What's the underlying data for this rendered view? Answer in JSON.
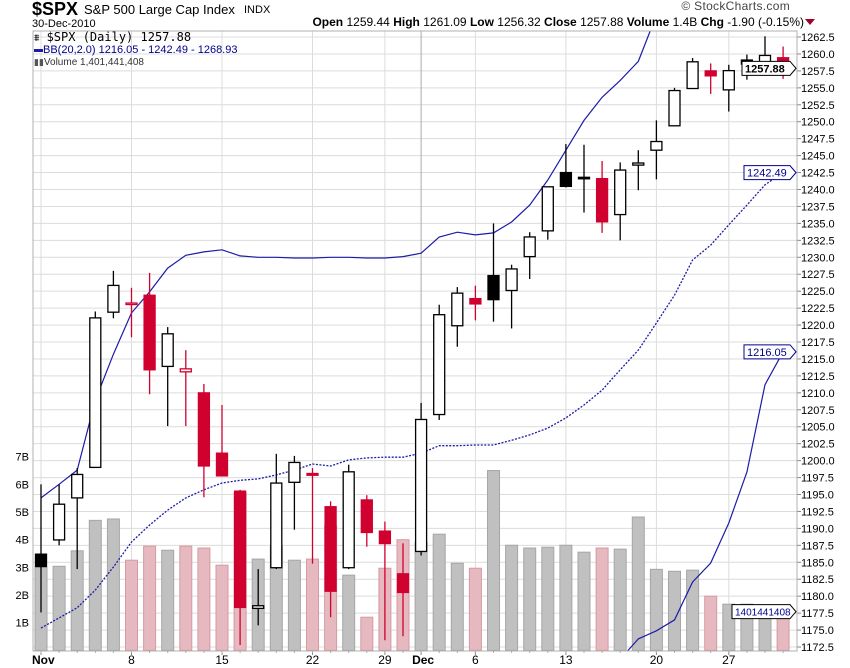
{
  "header": {
    "symbol": "$SPX",
    "name": "S&P 500 Large Cap Index",
    "exchange": "INDX",
    "date": "30-Dec-2010",
    "copyright": "© StockCharts.com",
    "open_label": "Open",
    "open": "1259.44",
    "high_label": "High",
    "high": "1261.09",
    "low_label": "Low",
    "low": "1256.32",
    "close_label": "Close",
    "close": "1257.88",
    "volume_label": "Volume",
    "volume": "1.4B",
    "chg_label": "Chg",
    "chg": "-1.90 (-0.15%)"
  },
  "legend": {
    "price": "$SPX (Daily) 1257.88",
    "bb": "BB(20,2.0) 1216.05 - 1242.49 - 1268.93",
    "volume": "Volume 1,401,441,408"
  },
  "colors": {
    "up": "#000000",
    "down": "#d0002f",
    "bb": "#1c1ca8",
    "vol_up": "#c0c0c0",
    "vol_down": "#e6b9c0"
  },
  "chart_data": {
    "type": "candlestick",
    "title": "$SPX S&P 500 Large Cap Index",
    "ylim": [
      1172.5,
      1262.5
    ],
    "yticks": [
      "1262.5",
      "1260.0",
      "1257.5",
      "1255.0",
      "1252.5",
      "1250.0",
      "1247.5",
      "1245.0",
      "1242.5",
      "1240.0",
      "1237.5",
      "1235.0",
      "1232.5",
      "1230.0",
      "1227.5",
      "1225.0",
      "1222.5",
      "1220.0",
      "1217.5",
      "1215.0",
      "1212.5",
      "1210.0",
      "1207.5",
      "1205.0",
      "1202.5",
      "1200.0",
      "1197.5",
      "1195.0",
      "1192.5",
      "1190.0",
      "1187.5",
      "1185.0",
      "1182.5",
      "1180.0",
      "1177.5",
      "1175.0",
      "1172.5"
    ],
    "volume_ticks": [
      "1B",
      "2B",
      "3B",
      "4B",
      "5B",
      "6B",
      "7B"
    ],
    "xticks": [
      {
        "index": 0,
        "label": "Nov",
        "bold": true
      },
      {
        "index": 5,
        "label": "8"
      },
      {
        "index": 10,
        "label": "15"
      },
      {
        "index": 15,
        "label": "22"
      },
      {
        "index": 19,
        "label": "29"
      },
      {
        "index": 21,
        "label": "Dec",
        "bold": true
      },
      {
        "index": 24,
        "label": "6"
      },
      {
        "index": 29,
        "label": "13"
      },
      {
        "index": 34,
        "label": "20"
      },
      {
        "index": 38,
        "label": "27"
      }
    ],
    "month_separator_index": 21,
    "last_labels": {
      "close": "1257.88",
      "bb_mid": "1242.49",
      "bb_lower": "1216.05",
      "volume": "1401441408"
    },
    "candles": [
      {
        "date": "Nov 1",
        "o": 1186.2,
        "h": 1196.5,
        "l": 1177.6,
        "c": 1184.38,
        "v": 3.0
      },
      {
        "date": "Nov 2",
        "o": 1188.3,
        "h": 1196.5,
        "l": 1187.5,
        "c": 1193.57,
        "v": 3.04
      },
      {
        "date": "Nov 3",
        "o": 1194.5,
        "h": 1198.9,
        "l": 1184.0,
        "c": 1197.96,
        "v": 3.6
      },
      {
        "date": "Nov 4",
        "o": 1199.0,
        "h": 1222.0,
        "l": 1199.0,
        "c": 1221.06,
        "v": 4.7
      },
      {
        "date": "Nov 5",
        "o": 1221.9,
        "h": 1228.0,
        "l": 1221.0,
        "c": 1225.85,
        "v": 4.75
      },
      {
        "date": "Nov 8",
        "o": 1223.2,
        "h": 1225.5,
        "l": 1218.2,
        "c": 1223.25,
        "v": 3.26
      },
      {
        "date": "Nov 9",
        "o": 1224.4,
        "h": 1227.7,
        "l": 1209.8,
        "c": 1213.4,
        "v": 3.77
      },
      {
        "date": "Nov 10",
        "o": 1213.9,
        "h": 1219.7,
        "l": 1205.1,
        "c": 1218.71,
        "v": 3.62
      },
      {
        "date": "Nov 11",
        "o": 1213.1,
        "h": 1216.3,
        "l": 1205.1,
        "c": 1213.54,
        "v": 3.77
      },
      {
        "date": "Nov 12",
        "o": 1210.0,
        "h": 1211.3,
        "l": 1194.6,
        "c": 1199.21,
        "v": 3.7
      },
      {
        "date": "Nov 15",
        "o": 1201.1,
        "h": 1208.2,
        "l": 1197.7,
        "c": 1197.75,
        "v": 3.08
      },
      {
        "date": "Nov 16",
        "o": 1195.5,
        "h": 1195.7,
        "l": 1172.8,
        "c": 1178.34,
        "v": 5.7
      },
      {
        "date": "Nov 17",
        "o": 1178.2,
        "h": 1184.0,
        "l": 1175.7,
        "c": 1178.59,
        "v": 3.3
      },
      {
        "date": "Nov 18",
        "o": 1184.2,
        "h": 1201.0,
        "l": 1184.0,
        "c": 1196.69,
        "v": 3.77
      },
      {
        "date": "Nov 19",
        "o": 1196.8,
        "h": 1200.7,
        "l": 1189.8,
        "c": 1199.73,
        "v": 3.26
      },
      {
        "date": "Nov 22",
        "o": 1198.1,
        "h": 1198.9,
        "l": 1184.8,
        "c": 1197.84,
        "v": 3.3
      },
      {
        "date": "Nov 23",
        "o": 1193.2,
        "h": 1194.0,
        "l": 1176.9,
        "c": 1180.73,
        "v": 4.5
      },
      {
        "date": "Nov 24",
        "o": 1184.2,
        "h": 1199.4,
        "l": 1184.0,
        "c": 1198.35,
        "v": 2.72
      },
      {
        "date": "Nov 26",
        "o": 1194.2,
        "h": 1194.9,
        "l": 1187.3,
        "c": 1189.4,
        "v": 1.2
      },
      {
        "date": "Nov 29",
        "o": 1189.6,
        "h": 1191.0,
        "l": 1173.5,
        "c": 1187.76,
        "v": 2.97
      },
      {
        "date": "Nov 30",
        "o": 1183.3,
        "h": 1187.8,
        "l": 1174.1,
        "c": 1180.55,
        "v": 4.0
      },
      {
        "date": "Dec 1",
        "o": 1186.6,
        "h": 1208.5,
        "l": 1186.0,
        "c": 1206.07,
        "v": 3.9
      },
      {
        "date": "Dec 2",
        "o": 1206.8,
        "h": 1223.0,
        "l": 1206.0,
        "c": 1221.53,
        "v": 4.2
      },
      {
        "date": "Dec 3",
        "o": 1219.9,
        "h": 1225.6,
        "l": 1216.8,
        "c": 1224.71,
        "v": 3.15
      },
      {
        "date": "Dec 6",
        "o": 1223.9,
        "h": 1225.8,
        "l": 1220.7,
        "c": 1223.12,
        "v": 2.97
      },
      {
        "date": "Dec 7",
        "o": 1227.3,
        "h": 1235.0,
        "l": 1220.5,
        "c": 1223.75,
        "v": 6.5
      },
      {
        "date": "Dec 8",
        "o": 1225.1,
        "h": 1228.9,
        "l": 1219.5,
        "c": 1228.28,
        "v": 3.8
      },
      {
        "date": "Dec 9",
        "o": 1230.1,
        "h": 1233.7,
        "l": 1226.8,
        "c": 1233.0,
        "v": 3.7
      },
      {
        "date": "Dec 10",
        "o": 1233.9,
        "h": 1240.4,
        "l": 1232.6,
        "c": 1240.4,
        "v": 3.73
      },
      {
        "date": "Dec 13",
        "o": 1242.5,
        "h": 1246.7,
        "l": 1240.3,
        "c": 1240.46,
        "v": 3.8
      },
      {
        "date": "Dec 14",
        "o": 1241.8,
        "h": 1246.6,
        "l": 1236.6,
        "c": 1241.59,
        "v": 3.55
      },
      {
        "date": "Dec 15",
        "o": 1241.6,
        "h": 1244.2,
        "l": 1233.6,
        "c": 1235.23,
        "v": 3.7
      },
      {
        "date": "Dec 16",
        "o": 1236.3,
        "h": 1244.0,
        "l": 1232.5,
        "c": 1242.87,
        "v": 3.66
      },
      {
        "date": "Dec 17",
        "o": 1243.6,
        "h": 1245.8,
        "l": 1239.9,
        "c": 1243.91,
        "v": 4.82
      },
      {
        "date": "Dec 20",
        "o": 1245.8,
        "h": 1250.2,
        "l": 1241.5,
        "c": 1247.08,
        "v": 2.93
      },
      {
        "date": "Dec 21",
        "o": 1249.4,
        "h": 1255.0,
        "l": 1249.4,
        "c": 1254.6,
        "v": 2.86
      },
      {
        "date": "Dec 22",
        "o": 1254.9,
        "h": 1259.4,
        "l": 1254.9,
        "c": 1258.84,
        "v": 2.9
      },
      {
        "date": "Dec 23",
        "o": 1257.5,
        "h": 1258.6,
        "l": 1254.1,
        "c": 1256.77,
        "v": 1.96
      },
      {
        "date": "Dec 27",
        "o": 1254.7,
        "h": 1258.4,
        "l": 1251.5,
        "c": 1257.54,
        "v": 1.67
      },
      {
        "date": "Dec 28",
        "o": 1259.1,
        "h": 1259.9,
        "l": 1256.2,
        "c": 1258.51,
        "v": 1.67
      },
      {
        "date": "Dec 29",
        "o": 1258.8,
        "h": 1262.6,
        "l": 1258.8,
        "c": 1259.78,
        "v": 1.52
      },
      {
        "date": "Dec 30",
        "o": 1259.44,
        "h": 1261.09,
        "l": 1256.32,
        "c": 1257.88,
        "v": 1.4
      }
    ],
    "bb_upper": [
      1194.5,
      1196.5,
      1198.6,
      1208.9,
      1215.7,
      1221.8,
      1224.9,
      1228.4,
      1230.3,
      1230.8,
      1231.1,
      1230.2,
      1230.0,
      1230.0,
      1229.9,
      1229.9,
      1230.0,
      1230.0,
      1229.9,
      1229.9,
      1230.1,
      1230.6,
      1233.0,
      1233.7,
      1233.3,
      1233.6,
      1235.2,
      1237.7,
      1241.4,
      1245.8,
      1250.2,
      1253.6,
      1256.1,
      1258.9,
      1265.7,
      1272.3,
      1277.1,
      1278.7,
      1278.8,
      1277.1,
      1270.2,
      1268.93
    ],
    "bb_middle": [
      1175.3,
      1176.8,
      1178.3,
      1180.9,
      1184.3,
      1188.0,
      1190.5,
      1192.7,
      1194.5,
      1195.7,
      1196.7,
      1197.1,
      1197.3,
      1197.9,
      1198.6,
      1199.5,
      1199.2,
      1200.1,
      1200.4,
      1200.5,
      1200.5,
      1201.1,
      1202.2,
      1202.2,
      1202.3,
      1202.3,
      1203.0,
      1203.8,
      1204.8,
      1206.3,
      1208.2,
      1210.4,
      1213.4,
      1216.3,
      1220.3,
      1224.4,
      1229.6,
      1231.8,
      1234.8,
      1237.7,
      1240.7,
      1242.49
    ],
    "bb_lower": [
      1156.1,
      1157.1,
      1158.0,
      1152.9,
      1152.9,
      1154.2,
      1156.1,
      1157.0,
      1158.7,
      1160.6,
      1162.3,
      1164.0,
      1164.6,
      1165.9,
      1167.3,
      1169.1,
      1168.4,
      1170.2,
      1170.9,
      1171.1,
      1170.9,
      1171.6,
      1171.4,
      1170.7,
      1171.3,
      1171.0,
      1170.8,
      1169.9,
      1168.2,
      1166.8,
      1166.2,
      1167.2,
      1170.7,
      1173.7,
      1174.9,
      1176.5,
      1182.1,
      1184.9,
      1190.8,
      1198.3,
      1211.2,
      1216.05
    ]
  }
}
